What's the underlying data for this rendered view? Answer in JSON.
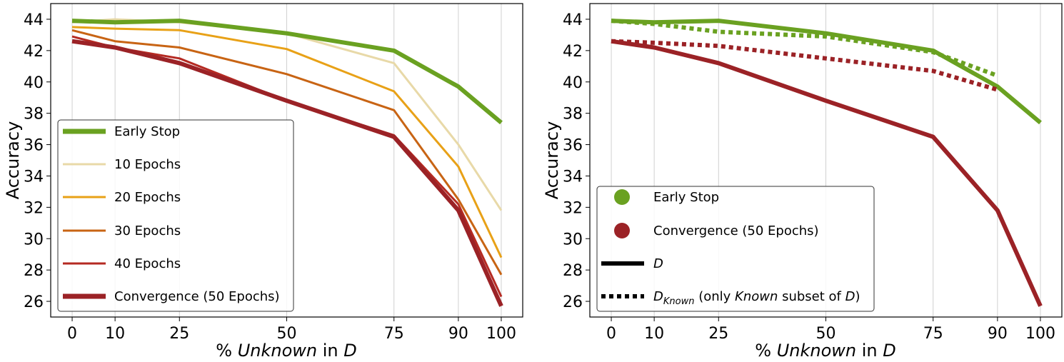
{
  "chart_data": [
    {
      "type": "line",
      "xlabel_parts": [
        "% ",
        "Unknown",
        " in ",
        "D"
      ],
      "ylabel": "Accuracy",
      "x": [
        0,
        10,
        25,
        50,
        75,
        90,
        100
      ],
      "x_tick_labels": [
        "0",
        "10",
        "25",
        "50",
        "75",
        "90",
        "100"
      ],
      "xlim": [
        -5,
        105
      ],
      "ylim": [
        25,
        45
      ],
      "y_ticks": [
        26,
        28,
        30,
        32,
        34,
        36,
        38,
        40,
        42,
        44
      ],
      "y_tick_labels": [
        "26",
        "28",
        "30",
        "32",
        "34",
        "36",
        "38",
        "40",
        "42",
        "44"
      ],
      "grid": "vertical",
      "legend_position": "lower-left",
      "series": [
        {
          "name": "10 Epochs",
          "color": "#e8d9a8",
          "values": [
            43.8,
            44.0,
            43.8,
            43.1,
            41.2,
            36.0,
            31.8
          ]
        },
        {
          "name": "20 Epochs",
          "color": "#e8a117",
          "values": [
            43.5,
            43.4,
            43.3,
            42.1,
            39.4,
            34.6,
            28.8
          ]
        },
        {
          "name": "30 Epochs",
          "color": "#c86414",
          "values": [
            43.3,
            42.6,
            42.2,
            40.5,
            38.2,
            32.5,
            27.7
          ]
        },
        {
          "name": "40 Epochs",
          "color": "#b52a22",
          "values": [
            42.9,
            42.2,
            41.5,
            38.8,
            36.6,
            32.2,
            26.3
          ]
        },
        {
          "name": "Convergence (50 Epochs)",
          "color": "#9b2226",
          "values": [
            42.6,
            42.2,
            41.2,
            38.8,
            36.5,
            31.8,
            25.7
          ]
        },
        {
          "name": "Early Stop",
          "color": "#6aa121",
          "values": [
            43.9,
            43.8,
            43.9,
            43.1,
            42.0,
            39.7,
            37.4
          ]
        }
      ],
      "legend": [
        {
          "label": "Early Stop",
          "color": "#6aa121"
        },
        {
          "label": "10 Epochs",
          "color": "#e8d9a8"
        },
        {
          "label": "20 Epochs",
          "color": "#e8a117"
        },
        {
          "label": "30 Epochs",
          "color": "#c86414"
        },
        {
          "label": "40 Epochs",
          "color": "#b52a22"
        },
        {
          "label": "Convergence (50 Epochs)",
          "color": "#9b2226"
        }
      ]
    },
    {
      "type": "line",
      "xlabel_parts": [
        "% ",
        "Unknown",
        " in ",
        "D"
      ],
      "ylabel": "Accuracy",
      "x": [
        0,
        10,
        25,
        50,
        75,
        90,
        100
      ],
      "x_tick_labels": [
        "0",
        "10",
        "25",
        "50",
        "75",
        "90",
        "100"
      ],
      "xlim": [
        -5,
        105
      ],
      "ylim": [
        25,
        45
      ],
      "y_ticks": [
        26,
        28,
        30,
        32,
        34,
        36,
        38,
        40,
        42,
        44
      ],
      "y_tick_labels": [
        "26",
        "28",
        "30",
        "32",
        "34",
        "36",
        "38",
        "40",
        "42",
        "44"
      ],
      "grid": "vertical",
      "legend_position": "lower-left",
      "series": [
        {
          "name": "Convergence (50 Epochs) — D",
          "color": "#9b2226",
          "style": "solid",
          "x": [
            0,
            10,
            25,
            50,
            75,
            90,
            100
          ],
          "values": [
            42.6,
            42.2,
            41.2,
            38.8,
            36.5,
            31.8,
            25.7
          ]
        },
        {
          "name": "Early Stop — D",
          "color": "#6aa121",
          "style": "solid",
          "x": [
            0,
            10,
            25,
            50,
            75,
            90,
            100
          ],
          "values": [
            43.9,
            43.8,
            43.9,
            43.1,
            42.0,
            39.7,
            37.4
          ]
        },
        {
          "name": "Convergence (50 Epochs) — D_Known",
          "color": "#9b2226",
          "style": "dotted",
          "x": [
            0,
            10,
            25,
            50,
            75,
            90
          ],
          "values": [
            42.6,
            42.5,
            42.3,
            41.5,
            40.7,
            39.5
          ]
        },
        {
          "name": "Early Stop — D_Known",
          "color": "#6aa121",
          "style": "dotted",
          "x": [
            0,
            10,
            25,
            50,
            75,
            90
          ],
          "values": [
            43.9,
            43.7,
            43.2,
            42.9,
            41.9,
            40.4
          ]
        }
      ],
      "legend": {
        "color_entries": [
          {
            "label": "Early Stop",
            "color": "#6aa121"
          },
          {
            "label": "Convergence (50 Epochs)",
            "color": "#9b2226"
          }
        ],
        "solid_label": "D",
        "dotted_label": {
          "base": "D",
          "subscript": "Known",
          "rest_1": " (only ",
          "italic": "Known",
          "rest_2": " subset of ",
          "d": "D",
          "close": ")"
        }
      }
    }
  ]
}
